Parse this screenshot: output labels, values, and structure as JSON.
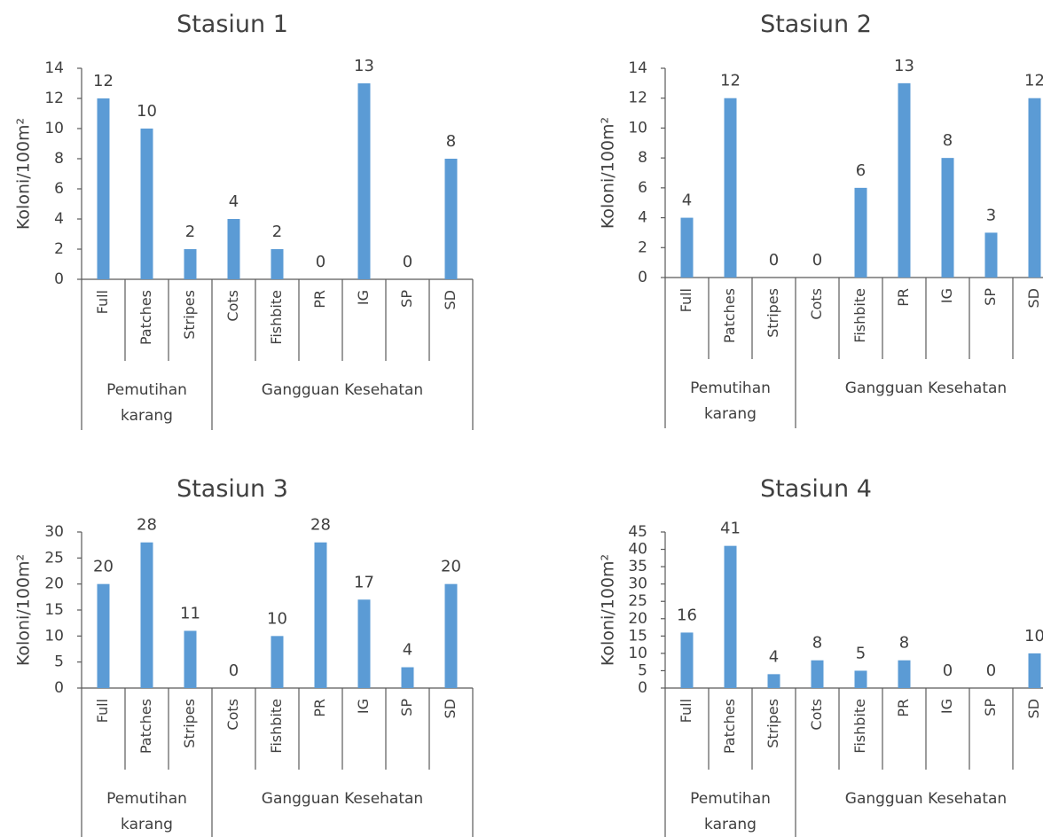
{
  "colors": {
    "bar": "#5b9bd5",
    "text": "#404040",
    "axis": "#595959"
  },
  "chart_data": [
    {
      "type": "bar",
      "title": "Stasiun 1",
      "ylabel": "Koloni/100m²",
      "ylim": [
        0,
        14
      ],
      "yticks": [
        0,
        2,
        4,
        6,
        8,
        10,
        12,
        14
      ],
      "categories": [
        "Full",
        "Patches",
        "Stripes",
        "Cots",
        "Fishbite",
        "PR",
        "IG",
        "SP",
        "SD"
      ],
      "values": [
        12,
        10,
        2,
        4,
        2,
        0,
        13,
        0,
        8
      ],
      "groups": [
        {
          "label_lines": [
            "Pemutihan",
            "karang"
          ],
          "start": 0,
          "end": 3
        },
        {
          "label_lines": [
            "Gangguan Kesehatan"
          ],
          "start": 3,
          "end": 9
        }
      ],
      "grid": false,
      "legend": "none"
    },
    {
      "type": "bar",
      "title": "Stasiun 2",
      "ylabel": "Koloni/100m²",
      "ylim": [
        0,
        14
      ],
      "yticks": [
        0,
        2,
        4,
        6,
        8,
        10,
        12,
        14
      ],
      "categories": [
        "Full",
        "Patches",
        "Stripes",
        "Cots",
        "Fishbite",
        "PR",
        "IG",
        "SP",
        "SD"
      ],
      "values": [
        4,
        12,
        0,
        0,
        6,
        13,
        8,
        3,
        12
      ],
      "groups": [
        {
          "label_lines": [
            "Pemutihan",
            "karang"
          ],
          "start": 0,
          "end": 3
        },
        {
          "label_lines": [
            "Gangguan Kesehatan"
          ],
          "start": 3,
          "end": 9
        }
      ],
      "grid": false,
      "legend": "none"
    },
    {
      "type": "bar",
      "title": "Stasiun 3",
      "ylabel": "Koloni/100m²",
      "ylim": [
        0,
        30
      ],
      "yticks": [
        0,
        5,
        10,
        15,
        20,
        25,
        30
      ],
      "categories": [
        "Full",
        "Patches",
        "Stripes",
        "Cots",
        "Fishbite",
        "PR",
        "IG",
        "SP",
        "SD"
      ],
      "values": [
        20,
        28,
        11,
        0,
        10,
        28,
        17,
        4,
        20
      ],
      "groups": [
        {
          "label_lines": [
            "Pemutihan",
            "karang"
          ],
          "start": 0,
          "end": 3
        },
        {
          "label_lines": [
            "Gangguan Kesehatan"
          ],
          "start": 3,
          "end": 9
        }
      ],
      "grid": false,
      "legend": "none"
    },
    {
      "type": "bar",
      "title": "Stasiun 4",
      "ylabel": "Koloni/100m²",
      "ylim": [
        0,
        45
      ],
      "yticks": [
        0,
        5,
        10,
        15,
        20,
        25,
        30,
        35,
        40,
        45
      ],
      "categories": [
        "Full",
        "Patches",
        "Stripes",
        "Cots",
        "Fishbite",
        "PR",
        "IG",
        "SP",
        "SD"
      ],
      "values": [
        16,
        41,
        4,
        8,
        5,
        8,
        0,
        0,
        10
      ],
      "groups": [
        {
          "label_lines": [
            "Pemutihan",
            "karang"
          ],
          "start": 0,
          "end": 3
        },
        {
          "label_lines": [
            "Gangguan Kesehatan"
          ],
          "start": 3,
          "end": 9
        }
      ],
      "grid": false,
      "legend": "none"
    }
  ]
}
